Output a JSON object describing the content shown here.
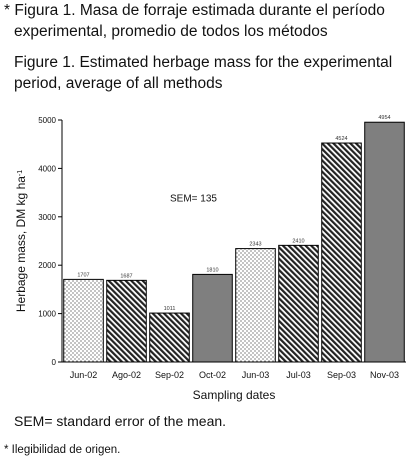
{
  "caption_es": {
    "marker": "*",
    "line1": "Figura 1. Masa de forraje estimada durante el período",
    "line2": "experimental, promedio de todos los métodos"
  },
  "caption_en": {
    "line1": "Figure 1. Estimated herbage mass for the experimental",
    "line2": "period, average of all methods"
  },
  "sem_definition": "SEM= standard error of the mean.",
  "footnote": "* Ilegibilidad de origen.",
  "chart_data": {
    "type": "bar",
    "xlabel": "Sampling dates",
    "ylabel": "Herbage mass, DM kg ha",
    "ylabel_sup": "-1",
    "ylim": [
      0,
      5000
    ],
    "yticks": [
      0,
      1000,
      2000,
      3000,
      4000,
      5000
    ],
    "annotation": "SEM= 135",
    "grid": false,
    "categories": [
      "Jun-02",
      "Ago-02",
      "Sep-02",
      "Oct-02",
      "Jun-03",
      "Jul-03",
      "Sep-03",
      "Nov-03"
    ],
    "values": [
      1707,
      1687,
      1011,
      1810,
      2343,
      2410,
      4524,
      4954
    ],
    "value_labels": [
      "1707",
      "1687",
      "1011",
      "1810",
      "2343",
      "2410",
      "4524",
      "4954"
    ],
    "fills": [
      "dots",
      "diagonal",
      "diagonal",
      "solid-gray",
      "dots",
      "diagonal",
      "diagonal",
      "solid-gray"
    ],
    "colors": {
      "solid": "#7f7f7f",
      "pattern": "#222222",
      "axis": "#000000"
    }
  }
}
